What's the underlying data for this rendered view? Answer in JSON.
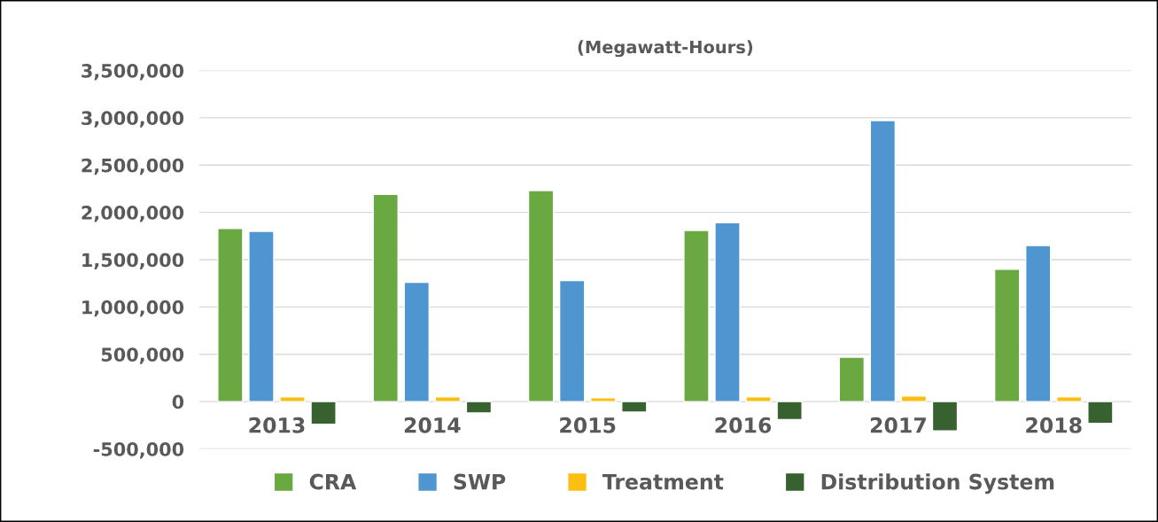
{
  "chart_data": {
    "type": "bar",
    "title": "(Megawatt-Hours)",
    "categories": [
      "2013",
      "2014",
      "2015",
      "2016",
      "2017",
      "2018"
    ],
    "series": [
      {
        "name": "CRA",
        "color": "#6aa842",
        "values": [
          1830000,
          2190000,
          2230000,
          1810000,
          470000,
          1400000
        ]
      },
      {
        "name": "SWP",
        "color": "#4f96d1",
        "values": [
          1800000,
          1260000,
          1280000,
          1890000,
          2970000,
          1650000
        ]
      },
      {
        "name": "Treatment",
        "color": "#fbbf14",
        "values": [
          50000,
          50000,
          40000,
          50000,
          60000,
          50000
        ]
      },
      {
        "name": "Distribution System",
        "color": "#376230",
        "values": [
          -240000,
          -120000,
          -110000,
          -190000,
          -310000,
          -230000
        ]
      }
    ],
    "ylim": [
      -500000,
      3500000
    ],
    "yticks": [
      {
        "value": -500000,
        "label": "-500,000"
      },
      {
        "value": 0,
        "label": "0"
      },
      {
        "value": 500000,
        "label": "500,000"
      },
      {
        "value": 1000000,
        "label": "1,000,000"
      },
      {
        "value": 1500000,
        "label": "1,500,000"
      },
      {
        "value": 2000000,
        "label": "2,000,000"
      },
      {
        "value": 2500000,
        "label": "2,500,000"
      },
      {
        "value": 3000000,
        "label": "3,000,000"
      },
      {
        "value": 3500000,
        "label": "3,500,000"
      }
    ],
    "grid": "y",
    "legend": "bottom"
  }
}
